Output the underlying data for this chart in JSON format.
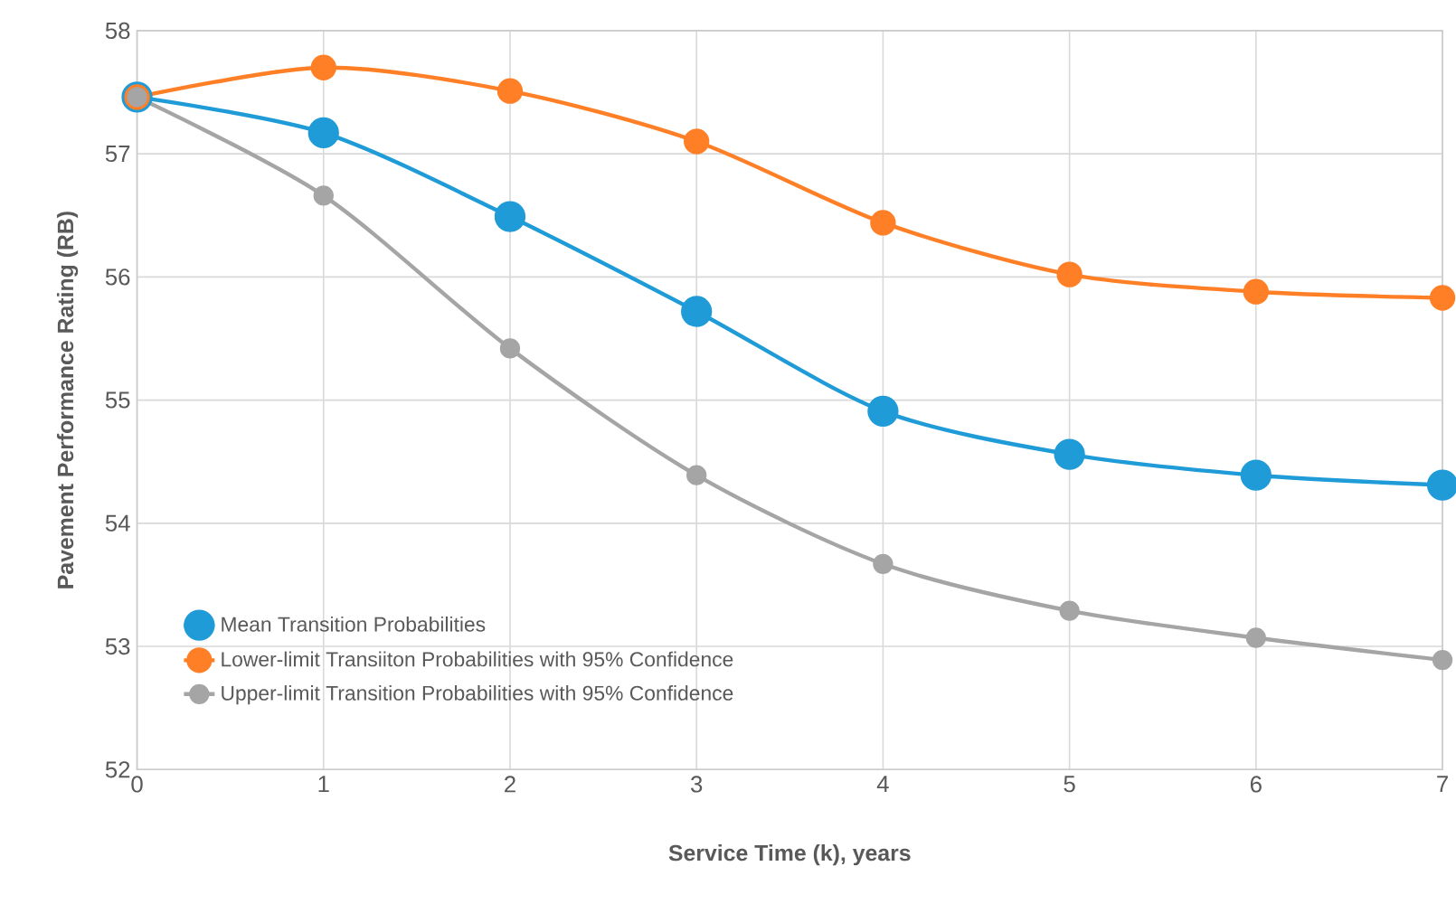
{
  "chart_data": {
    "type": "line",
    "xlabel": "Service Time (k), years",
    "ylabel": "Pavement Performance Rating (RB)",
    "x": [
      0,
      1,
      2,
      3,
      4,
      5,
      6,
      7
    ],
    "series": [
      {
        "name": "Mean Transition Probabilities",
        "color": "#1f9bd7",
        "values": [
          57.46,
          57.17,
          56.49,
          55.72,
          54.91,
          54.56,
          54.39,
          54.31
        ]
      },
      {
        "name": "Lower-limit Transiiton Probabilities with 95% Confidence",
        "color": "#ff7f27",
        "values": [
          57.46,
          57.7,
          57.51,
          57.1,
          56.44,
          56.02,
          55.88,
          55.83
        ]
      },
      {
        "name": "Upper-limit Transition Probabilities with 95% Confidence",
        "color": "#a5a5a5",
        "values": [
          57.46,
          56.66,
          55.42,
          54.39,
          53.67,
          53.29,
          53.07,
          52.89
        ]
      }
    ],
    "xlim": [
      0,
      7
    ],
    "ylim": [
      52,
      58
    ],
    "xticks": [
      0,
      1,
      2,
      3,
      4,
      5,
      6,
      7
    ],
    "yticks": [
      52,
      53,
      54,
      55,
      56,
      57,
      58
    ],
    "grid": true,
    "legend": "bottom left",
    "marker": "circle",
    "line_style": "solid"
  }
}
